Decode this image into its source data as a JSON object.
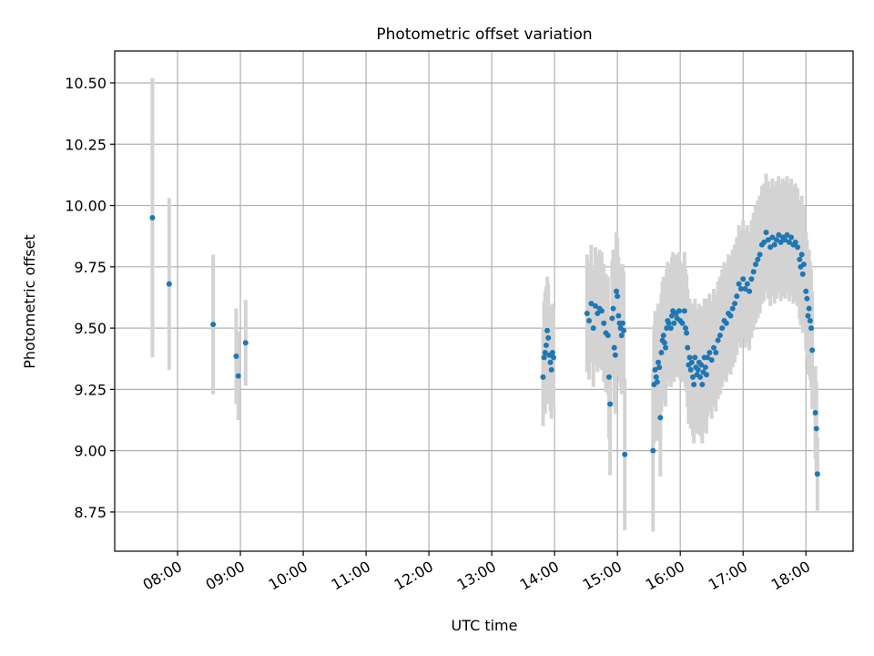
{
  "chart_data": {
    "type": "scatter",
    "title": "Photometric offset variation",
    "xlabel": "UTC time",
    "ylabel": "Photometric offset",
    "x_unit": "hours (UTC)",
    "xlim": [
      "07:00",
      "18:45"
    ],
    "ylim": [
      8.59,
      10.63
    ],
    "grid": true,
    "x_tick_labels": [
      "08:00",
      "09:00",
      "10:00",
      "11:00",
      "12:00",
      "13:00",
      "14:00",
      "15:00",
      "16:00",
      "17:00",
      "18:00"
    ],
    "y_tick_labels": [
      "8.75",
      "9.00",
      "9.25",
      "9.50",
      "9.75",
      "10.00",
      "10.25",
      "10.50"
    ],
    "colors": {
      "point": "#1f77b4",
      "errorbar": "#d3d3d3",
      "grid": "#b0b0b0"
    },
    "series": [
      {
        "points": [
          [
            "07:36",
            9.95,
            0.57
          ],
          [
            "07:52",
            9.68,
            0.35
          ],
          [
            "08:34",
            9.515,
            0.285
          ],
          [
            "08:56",
            9.385,
            0.195
          ],
          [
            "08:58",
            9.305,
            0.18
          ],
          [
            "09:05",
            9.44,
            0.175
          ],
          [
            "13:49",
            9.3,
            0.2
          ],
          [
            "13:50",
            9.38,
            0.23
          ],
          [
            "13:51",
            9.4,
            0.25
          ],
          [
            "13:52",
            9.43,
            0.24
          ],
          [
            "13:53",
            9.49,
            0.22
          ],
          [
            "13:54",
            9.46,
            0.22
          ],
          [
            "13:55",
            9.39,
            0.2
          ],
          [
            "13:56",
            9.36,
            0.2
          ],
          [
            "13:57",
            9.33,
            0.2
          ],
          [
            "13:58",
            9.4,
            0.2
          ],
          [
            "13:59",
            9.38,
            0.2
          ],
          [
            "14:31",
            9.56,
            0.24
          ],
          [
            "14:33",
            9.53,
            0.24
          ],
          [
            "14:35",
            9.6,
            0.24
          ],
          [
            "14:37",
            9.5,
            0.24
          ],
          [
            "14:39",
            9.59,
            0.24
          ],
          [
            "14:41",
            9.56,
            0.24
          ],
          [
            "14:43",
            9.58,
            0.24
          ],
          [
            "14:45",
            9.57,
            0.24
          ],
          [
            "14:47",
            9.52,
            0.24
          ],
          [
            "14:49",
            9.48,
            0.24
          ],
          [
            "14:51",
            9.47,
            0.24
          ],
          [
            "14:52",
            9.3,
            0.25
          ],
          [
            "14:53",
            9.19,
            0.29
          ],
          [
            "14:55",
            9.54,
            0.24
          ],
          [
            "14:56",
            9.58,
            0.24
          ],
          [
            "14:57",
            9.42,
            0.24
          ],
          [
            "14:58",
            9.39,
            0.24
          ],
          [
            "14:59",
            9.65,
            0.24
          ],
          [
            "15:00",
            9.63,
            0.24
          ],
          [
            "15:01",
            9.55,
            0.24
          ],
          [
            "15:02",
            9.52,
            0.24
          ],
          [
            "15:03",
            9.5,
            0.24
          ],
          [
            "15:04",
            9.47,
            0.24
          ],
          [
            "15:05",
            9.52,
            0.24
          ],
          [
            "15:06",
            9.49,
            0.24
          ],
          [
            "15:07",
            8.985,
            0.31
          ],
          [
            "15:34",
            9.0,
            0.33
          ],
          [
            "15:35",
            9.27,
            0.24
          ],
          [
            "15:36",
            9.33,
            0.24
          ],
          [
            "15:37",
            9.3,
            0.24
          ],
          [
            "15:38",
            9.28,
            0.24
          ],
          [
            "15:39",
            9.36,
            0.24
          ],
          [
            "15:40",
            9.34,
            0.24
          ],
          [
            "15:41",
            9.135,
            0.24
          ],
          [
            "15:42",
            9.4,
            0.24
          ],
          [
            "15:43",
            9.45,
            0.24
          ],
          [
            "15:44",
            9.47,
            0.24
          ],
          [
            "15:45",
            9.44,
            0.24
          ],
          [
            "15:46",
            9.42,
            0.24
          ],
          [
            "15:47",
            9.5,
            0.24
          ],
          [
            "15:48",
            9.53,
            0.24
          ],
          [
            "15:49",
            9.52,
            0.24
          ],
          [
            "15:51",
            9.5,
            0.24
          ],
          [
            "15:52",
            9.55,
            0.24
          ],
          [
            "15:53",
            9.57,
            0.24
          ],
          [
            "15:54",
            9.52,
            0.24
          ],
          [
            "15:56",
            9.56,
            0.24
          ],
          [
            "15:57",
            9.54,
            0.24
          ],
          [
            "15:59",
            9.57,
            0.24
          ],
          [
            "16:00",
            9.53,
            0.24
          ],
          [
            "16:02",
            9.52,
            0.24
          ],
          [
            "16:04",
            9.57,
            0.24
          ],
          [
            "16:05",
            9.5,
            0.24
          ],
          [
            "16:06",
            9.48,
            0.24
          ],
          [
            "16:07",
            9.42,
            0.24
          ],
          [
            "16:08",
            9.35,
            0.24
          ],
          [
            "16:09",
            9.38,
            0.24
          ],
          [
            "16:10",
            9.33,
            0.24
          ],
          [
            "16:11",
            9.36,
            0.24
          ],
          [
            "16:12",
            9.3,
            0.24
          ],
          [
            "16:13",
            9.27,
            0.24
          ],
          [
            "16:14",
            9.38,
            0.24
          ],
          [
            "16:15",
            9.34,
            0.24
          ],
          [
            "16:16",
            9.31,
            0.24
          ],
          [
            "16:17",
            9.33,
            0.24
          ],
          [
            "16:18",
            9.36,
            0.24
          ],
          [
            "16:19",
            9.3,
            0.24
          ],
          [
            "16:20",
            9.35,
            0.24
          ],
          [
            "16:21",
            9.27,
            0.24
          ],
          [
            "16:22",
            9.32,
            0.24
          ],
          [
            "16:23",
            9.38,
            0.24
          ],
          [
            "16:24",
            9.34,
            0.24
          ],
          [
            "16:25",
            9.31,
            0.24
          ],
          [
            "16:26",
            9.38,
            0.24
          ],
          [
            "16:28",
            9.4,
            0.24
          ],
          [
            "16:30",
            9.37,
            0.24
          ],
          [
            "16:32",
            9.42,
            0.24
          ],
          [
            "16:34",
            9.4,
            0.24
          ],
          [
            "16:36",
            9.45,
            0.24
          ],
          [
            "16:38",
            9.47,
            0.24
          ],
          [
            "16:40",
            9.5,
            0.24
          ],
          [
            "16:42",
            9.53,
            0.24
          ],
          [
            "16:44",
            9.52,
            0.24
          ],
          [
            "16:46",
            9.56,
            0.24
          ],
          [
            "16:48",
            9.55,
            0.24
          ],
          [
            "16:50",
            9.58,
            0.24
          ],
          [
            "16:52",
            9.6,
            0.24
          ],
          [
            "16:54",
            9.63,
            0.24
          ],
          [
            "16:56",
            9.68,
            0.24
          ],
          [
            "16:58",
            9.66,
            0.24
          ],
          [
            "17:00",
            9.7,
            0.24
          ],
          [
            "17:02",
            9.66,
            0.24
          ],
          [
            "17:04",
            9.68,
            0.24
          ],
          [
            "17:06",
            9.65,
            0.24
          ],
          [
            "17:08",
            9.7,
            0.24
          ],
          [
            "17:10",
            9.73,
            0.24
          ],
          [
            "17:12",
            9.76,
            0.24
          ],
          [
            "17:14",
            9.78,
            0.24
          ],
          [
            "17:16",
            9.8,
            0.24
          ],
          [
            "17:18",
            9.84,
            0.24
          ],
          [
            "17:20",
            9.85,
            0.24
          ],
          [
            "17:22",
            9.89,
            0.24
          ],
          [
            "17:24",
            9.86,
            0.24
          ],
          [
            "17:26",
            9.83,
            0.24
          ],
          [
            "17:28",
            9.87,
            0.24
          ],
          [
            "17:30",
            9.84,
            0.24
          ],
          [
            "17:32",
            9.86,
            0.24
          ],
          [
            "17:34",
            9.88,
            0.24
          ],
          [
            "17:36",
            9.85,
            0.24
          ],
          [
            "17:38",
            9.87,
            0.24
          ],
          [
            "17:40",
            9.86,
            0.24
          ],
          [
            "17:42",
            9.88,
            0.24
          ],
          [
            "17:44",
            9.85,
            0.24
          ],
          [
            "17:46",
            9.87,
            0.24
          ],
          [
            "17:48",
            9.84,
            0.24
          ],
          [
            "17:50",
            9.85,
            0.24
          ],
          [
            "17:52",
            9.83,
            0.24
          ],
          [
            "17:54",
            9.78,
            0.24
          ],
          [
            "17:55",
            9.75,
            0.24
          ],
          [
            "17:56",
            9.8,
            0.24
          ],
          [
            "17:57",
            9.72,
            0.24
          ],
          [
            "17:58",
            9.76,
            0.24
          ],
          [
            "18:00",
            9.65,
            0.24
          ],
          [
            "18:01",
            9.62,
            0.24
          ],
          [
            "18:02",
            9.55,
            0.24
          ],
          [
            "18:03",
            9.58,
            0.24
          ],
          [
            "18:04",
            9.53,
            0.24
          ],
          [
            "18:05",
            9.5,
            0.24
          ],
          [
            "18:06",
            9.41,
            0.24
          ],
          [
            "18:09",
            9.155,
            0.19
          ],
          [
            "18:10",
            9.09,
            0.19
          ],
          [
            "18:11",
            8.905,
            0.15
          ]
        ]
      }
    ]
  }
}
